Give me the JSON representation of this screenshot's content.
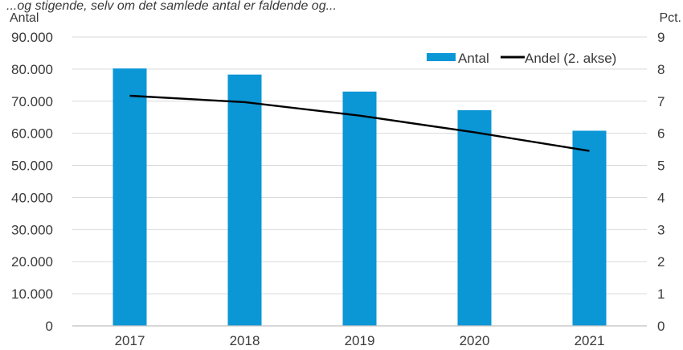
{
  "top_text": "...og stigende, selv om det samlede antal er faldende og...",
  "chart_data": {
    "type": "bar",
    "categories": [
      "2017",
      "2018",
      "2019",
      "2020",
      "2021"
    ],
    "series": [
      {
        "name": "Antal",
        "type": "bar",
        "axis": "left",
        "values": [
          80200,
          78300,
          73000,
          67200,
          60800
        ]
      },
      {
        "name": "Andel (2. akse)",
        "type": "line",
        "axis": "right",
        "values": [
          7.17,
          6.97,
          6.55,
          6.03,
          5.45
        ]
      }
    ],
    "ylabel_left": "Antal",
    "ylabel_right": "Pct.",
    "ylim_left": [
      0,
      90000
    ],
    "ylim_right": [
      0,
      9
    ],
    "yticks_left": [
      "0",
      "10.000",
      "20.000",
      "30.000",
      "40.000",
      "50.000",
      "60.000",
      "70.000",
      "80.000",
      "90.000"
    ],
    "yticks_right": [
      "0",
      "1",
      "2",
      "3",
      "4",
      "5",
      "6",
      "7",
      "8",
      "9"
    ],
    "grid": true,
    "legend_position": "top-right",
    "colors": {
      "bar": "#0b96d6",
      "line": "#000000",
      "grid": "#d9d9d9",
      "axis": "#bfbfbf"
    }
  }
}
